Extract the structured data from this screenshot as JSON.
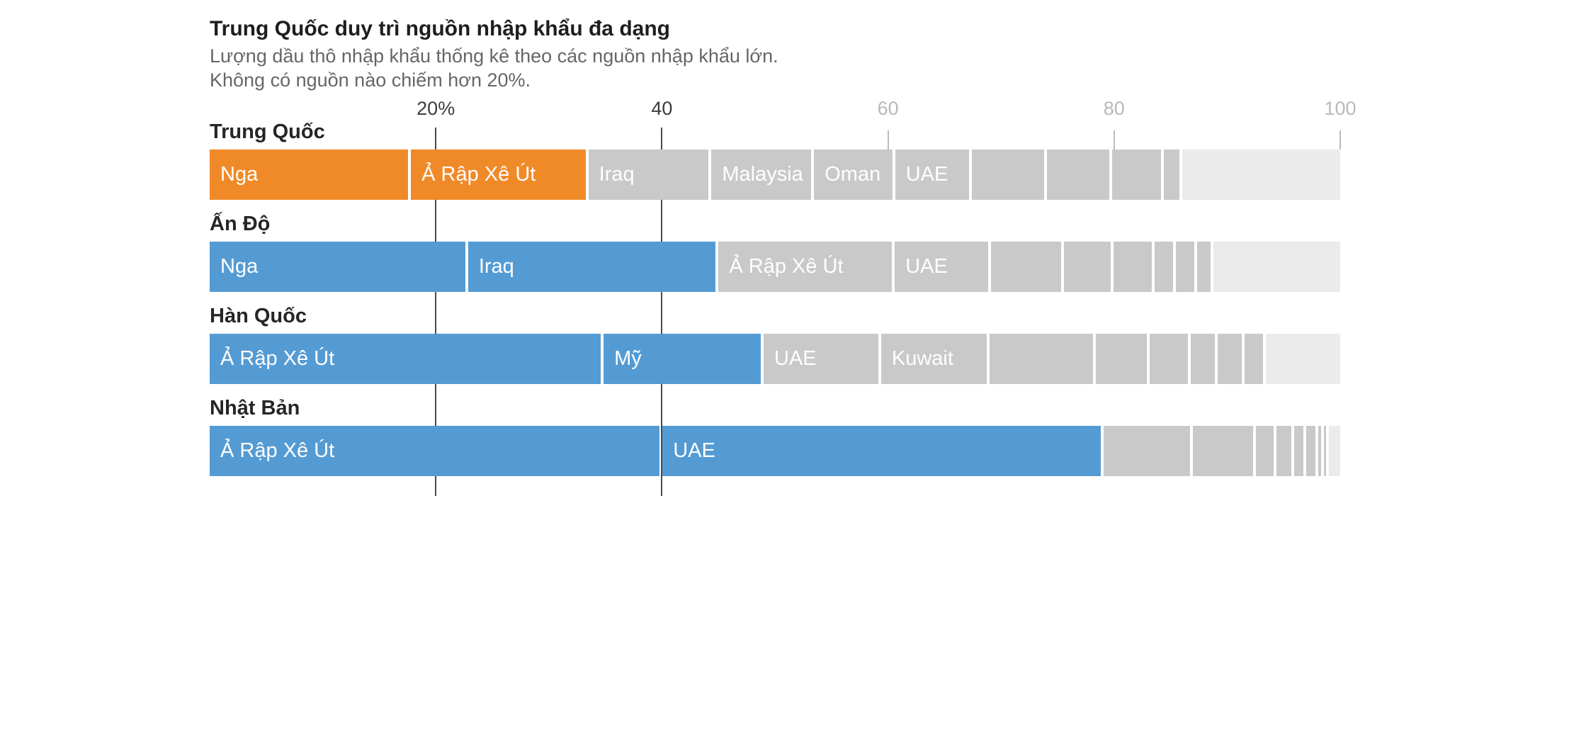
{
  "header": {
    "title": "Trung Quốc duy trì nguồn nhập khẩu đa dạng",
    "subtitle_line1": "Lượng dầu thô nhập khẩu thống kê theo các nguồn nhập khẩu lớn.",
    "subtitle_line2": "Không có nguồn nào chiếm hơn 20%."
  },
  "chart_data": {
    "type": "bar",
    "variant": "stacked-horizontal",
    "value_unit": "percent of crude oil imports",
    "axis_range": [
      0,
      100
    ],
    "grid": "vertical lines at 20 and 40 only, short ticks at 60/80/100",
    "legend_position": "none (labels inside segments)",
    "axis_ticks": [
      {
        "value": 20,
        "label": "20%",
        "style": "dark"
      },
      {
        "value": 40,
        "label": "40",
        "style": "dark"
      },
      {
        "value": 60,
        "label": "60",
        "style": "light"
      },
      {
        "value": 80,
        "label": "80",
        "style": "light"
      },
      {
        "value": 100,
        "label": "100",
        "style": "light"
      }
    ],
    "colors": {
      "china_highlight": "#F08A28",
      "default_highlight": "#559BD3",
      "named_gray": "#C9C9C9",
      "others_light": "#EBEBEB",
      "grid_dark": "#4A4A4A",
      "tick_light": "#BBBBBB",
      "title_text": "#1E1E1E",
      "subtitle_text": "#666666",
      "row_label_text": "#262626",
      "segment_label_text": "#FFFFFF"
    },
    "rows": [
      {
        "label": "Trung Quốc",
        "highlight_color": "#F08A28",
        "segments": [
          {
            "name": "Nga",
            "value": 17.5,
            "kind": "highlight"
          },
          {
            "name": "Ả Rập Xê Út",
            "value": 15.4,
            "kind": "highlight"
          },
          {
            "name": "Iraq",
            "value": 10.6,
            "kind": "gray"
          },
          {
            "name": "Malaysia",
            "value": 8.8,
            "kind": "gray"
          },
          {
            "name": "Oman",
            "value": 6.9,
            "kind": "gray"
          },
          {
            "name": "UAE",
            "value": 6.5,
            "kind": "gray"
          },
          {
            "name": "",
            "value": 6.4,
            "kind": "gray"
          },
          {
            "name": "",
            "value": 5.5,
            "kind": "gray"
          },
          {
            "name": "",
            "value": 4.3,
            "kind": "gray"
          },
          {
            "name": "",
            "value": 1.4,
            "kind": "gray"
          },
          {
            "name": "",
            "value": 13.9,
            "kind": "others"
          }
        ]
      },
      {
        "label": "Ấn Độ",
        "highlight_color": "#559BD3",
        "segments": [
          {
            "name": "Nga",
            "value": 22.4,
            "kind": "highlight"
          },
          {
            "name": "Iraq",
            "value": 21.7,
            "kind": "highlight"
          },
          {
            "name": "Ả Rập Xê Út",
            "value": 15.2,
            "kind": "gray"
          },
          {
            "name": "UAE",
            "value": 8.2,
            "kind": "gray"
          },
          {
            "name": "",
            "value": 6.1,
            "kind": "gray"
          },
          {
            "name": "",
            "value": 4.1,
            "kind": "gray"
          },
          {
            "name": "",
            "value": 3.4,
            "kind": "gray"
          },
          {
            "name": "",
            "value": 1.6,
            "kind": "gray"
          },
          {
            "name": "",
            "value": 1.6,
            "kind": "gray"
          },
          {
            "name": "",
            "value": 1.2,
            "kind": "gray"
          },
          {
            "name": "",
            "value": 11.1,
            "kind": "others"
          }
        ]
      },
      {
        "label": "Hàn Quốc",
        "highlight_color": "#559BD3",
        "segments": [
          {
            "name": "Ả Rập Xê Út",
            "value": 34.1,
            "kind": "highlight"
          },
          {
            "name": "Mỹ",
            "value": 13.7,
            "kind": "highlight"
          },
          {
            "name": "UAE",
            "value": 10.0,
            "kind": "gray"
          },
          {
            "name": "Kuwait",
            "value": 9.2,
            "kind": "gray"
          },
          {
            "name": "",
            "value": 9.0,
            "kind": "gray"
          },
          {
            "name": "",
            "value": 4.5,
            "kind": "gray"
          },
          {
            "name": "",
            "value": 3.3,
            "kind": "gray"
          },
          {
            "name": "",
            "value": 2.1,
            "kind": "gray"
          },
          {
            "name": "",
            "value": 2.1,
            "kind": "gray"
          },
          {
            "name": "",
            "value": 1.6,
            "kind": "gray"
          },
          {
            "name": "",
            "value": 6.5,
            "kind": "others"
          }
        ]
      },
      {
        "label": "Nhật Bản",
        "highlight_color": "#559BD3",
        "segments": [
          {
            "name": "Ả Rập Xê Út",
            "value": 39.7,
            "kind": "highlight"
          },
          {
            "name": "UAE",
            "value": 38.7,
            "kind": "highlight"
          },
          {
            "name": "",
            "value": 7.6,
            "kind": "gray"
          },
          {
            "name": "",
            "value": 5.3,
            "kind": "gray"
          },
          {
            "name": "",
            "value": 1.6,
            "kind": "gray"
          },
          {
            "name": "",
            "value": 1.3,
            "kind": "gray"
          },
          {
            "name": "",
            "value": 0.8,
            "kind": "gray"
          },
          {
            "name": "",
            "value": 0.8,
            "kind": "gray"
          },
          {
            "name": "",
            "value": 0.25,
            "kind": "gray"
          },
          {
            "name": "",
            "value": 0.2,
            "kind": "gray"
          },
          {
            "name": "",
            "value": 1.0,
            "kind": "others"
          }
        ]
      }
    ]
  }
}
